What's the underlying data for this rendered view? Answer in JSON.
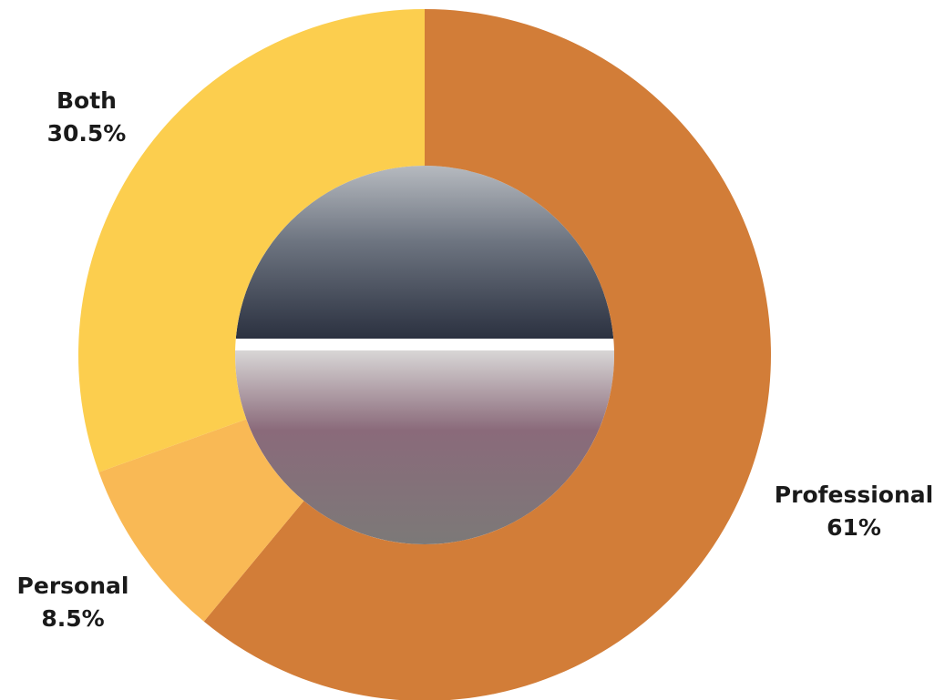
{
  "chart_data": {
    "type": "donut",
    "categories": [
      "Professional",
      "Personal",
      "Both"
    ],
    "values": [
      61,
      8.5,
      30.5
    ],
    "value_labels": [
      "61%",
      "8.5%",
      "30.5%"
    ],
    "colors": [
      "#d27d38",
      "#f9b955",
      "#fcce4e"
    ]
  }
}
